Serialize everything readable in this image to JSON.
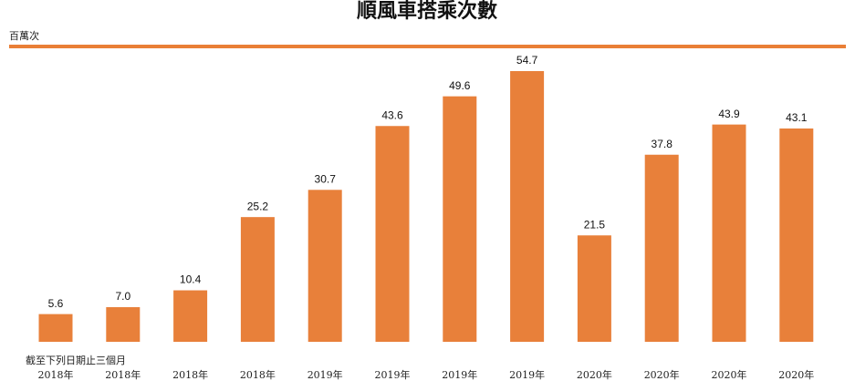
{
  "chart_data": {
    "type": "bar",
    "title": "順風車搭乘次數",
    "unit_label": "百萬次",
    "note": "截至下列日期止三個月",
    "categories": [
      "2018年",
      "2018年",
      "2018年",
      "2018年",
      "2019年",
      "2019年",
      "2019年",
      "2019年",
      "2020年",
      "2020年",
      "2020年",
      "2020年"
    ],
    "values": [
      5.6,
      7.0,
      10.4,
      25.2,
      30.7,
      43.6,
      49.6,
      54.7,
      21.5,
      37.8,
      43.9,
      43.1
    ],
    "value_labels": [
      "5.6",
      "7.0",
      "10.4",
      "25.2",
      "30.7",
      "43.6",
      "49.6",
      "54.7",
      "21.5",
      "37.8",
      "43.9",
      "43.1"
    ],
    "color": "#e8803a"
  }
}
